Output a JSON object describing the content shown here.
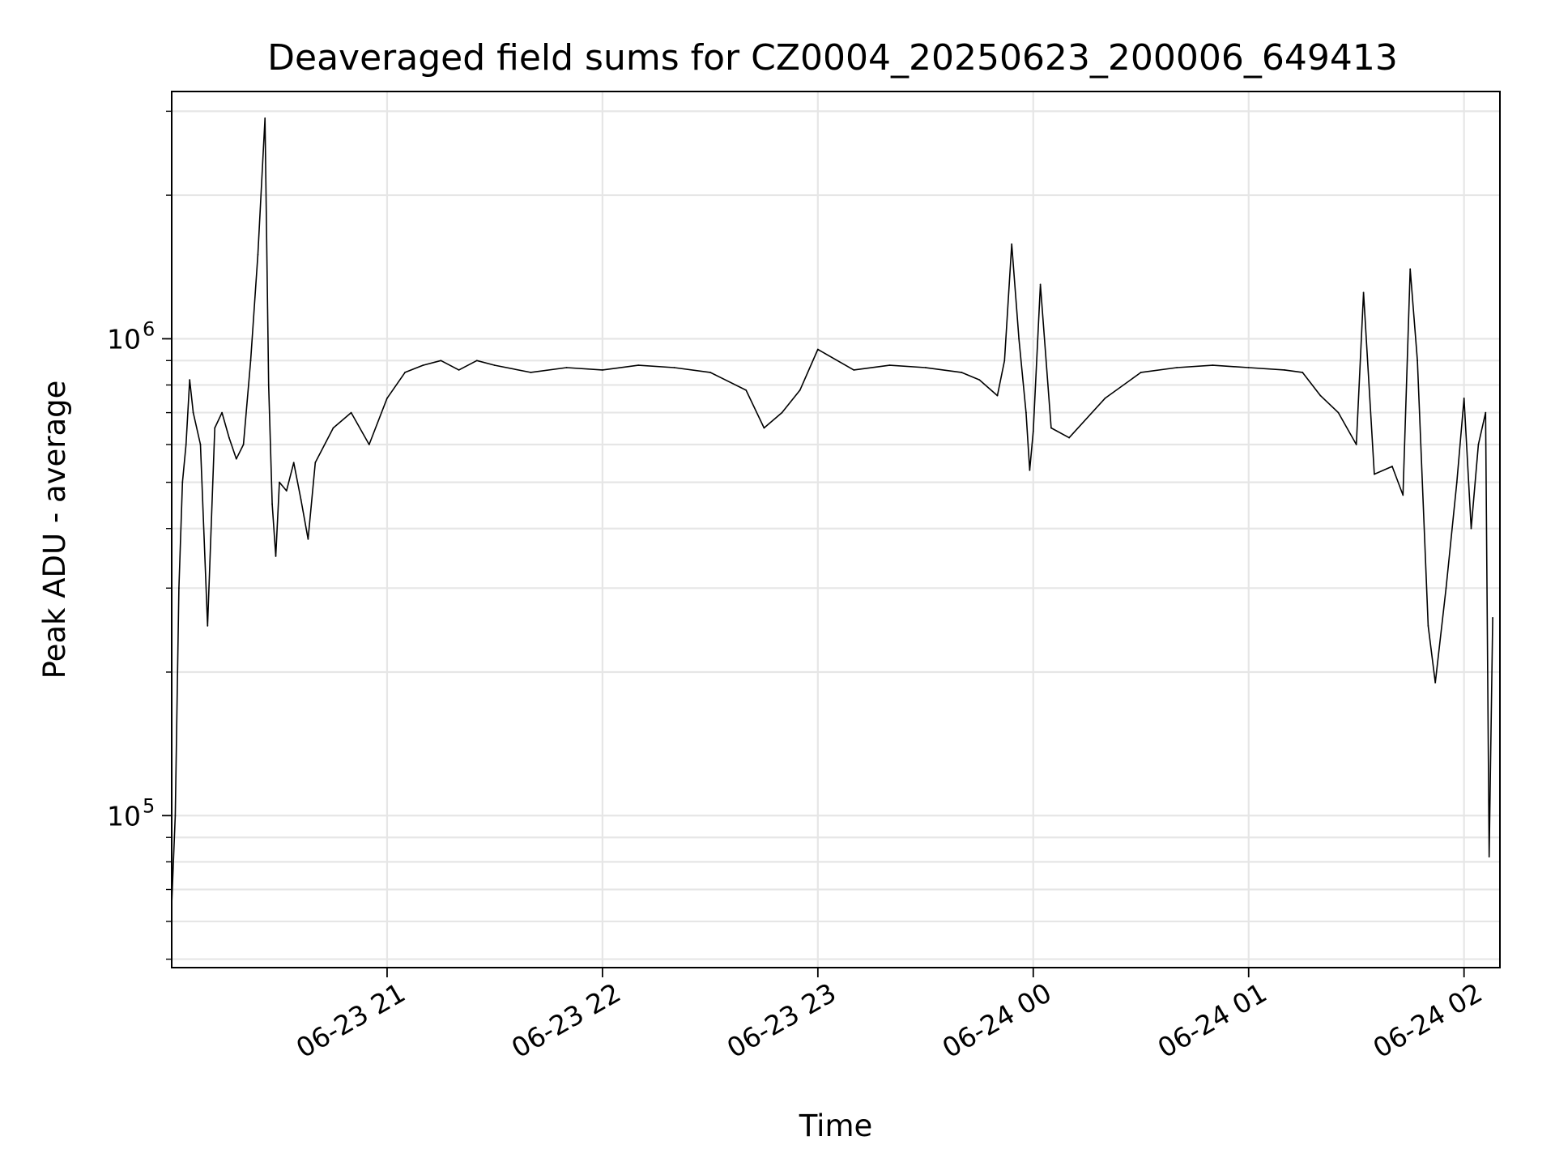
{
  "chart_data": {
    "type": "line",
    "title": "Deaveraged field sums for CZ0004_20250623_200006_649413",
    "xlabel": "Time",
    "ylabel": "Peak ADU - average",
    "yscale": "log",
    "xlim": [
      "2025-06-23 20:00",
      "2025-06-24 02:10"
    ],
    "ylim": [
      48000,
      3300000
    ],
    "grid": true,
    "line_color": "#000000",
    "x_ticks": [
      {
        "t": "2025-06-23 21:00",
        "label": "06-23 21"
      },
      {
        "t": "2025-06-23 22:00",
        "label": "06-23 22"
      },
      {
        "t": "2025-06-23 23:00",
        "label": "06-23 23"
      },
      {
        "t": "2025-06-24 00:00",
        "label": "06-24 00"
      },
      {
        "t": "2025-06-24 01:00",
        "label": "06-24 01"
      },
      {
        "t": "2025-06-24 02:00",
        "label": "06-24 02"
      }
    ],
    "y_ticks": [
      {
        "value": 100000,
        "base": "10",
        "exp": "5"
      },
      {
        "value": 1000000,
        "base": "10",
        "exp": "6"
      }
    ],
    "x": [
      "2025-06-23 20:00",
      "2025-06-23 20:01",
      "2025-06-23 20:02",
      "2025-06-23 20:03",
      "2025-06-23 20:04",
      "2025-06-23 20:05",
      "2025-06-23 20:06",
      "2025-06-23 20:08",
      "2025-06-23 20:10",
      "2025-06-23 20:12",
      "2025-06-23 20:14",
      "2025-06-23 20:16",
      "2025-06-23 20:18",
      "2025-06-23 20:20",
      "2025-06-23 20:22",
      "2025-06-23 20:24",
      "2025-06-23 20:26",
      "2025-06-23 20:27",
      "2025-06-23 20:28",
      "2025-06-23 20:29",
      "2025-06-23 20:30",
      "2025-06-23 20:32",
      "2025-06-23 20:34",
      "2025-06-23 20:36",
      "2025-06-23 20:38",
      "2025-06-23 20:40",
      "2025-06-23 20:45",
      "2025-06-23 20:50",
      "2025-06-23 20:55",
      "2025-06-23 21:00",
      "2025-06-23 21:05",
      "2025-06-23 21:10",
      "2025-06-23 21:15",
      "2025-06-23 21:20",
      "2025-06-23 21:25",
      "2025-06-23 21:30",
      "2025-06-23 21:40",
      "2025-06-23 21:50",
      "2025-06-23 22:00",
      "2025-06-23 22:10",
      "2025-06-23 22:20",
      "2025-06-23 22:30",
      "2025-06-23 22:40",
      "2025-06-23 22:45",
      "2025-06-23 22:50",
      "2025-06-23 22:55",
      "2025-06-23 23:00",
      "2025-06-23 23:10",
      "2025-06-23 23:20",
      "2025-06-23 23:30",
      "2025-06-23 23:40",
      "2025-06-23 23:45",
      "2025-06-23 23:50",
      "2025-06-23 23:52",
      "2025-06-23 23:54",
      "2025-06-23 23:56",
      "2025-06-23 23:58",
      "2025-06-23 23:59",
      "2025-06-24 00:00",
      "2025-06-24 00:02",
      "2025-06-24 00:05",
      "2025-06-24 00:10",
      "2025-06-24 00:20",
      "2025-06-24 00:30",
      "2025-06-24 00:40",
      "2025-06-24 00:50",
      "2025-06-24 01:00",
      "2025-06-24 01:10",
      "2025-06-24 01:15",
      "2025-06-24 01:20",
      "2025-06-24 01:25",
      "2025-06-24 01:30",
      "2025-06-24 01:32",
      "2025-06-24 01:35",
      "2025-06-24 01:40",
      "2025-06-24 01:43",
      "2025-06-24 01:45",
      "2025-06-24 01:47",
      "2025-06-24 01:50",
      "2025-06-24 01:52",
      "2025-06-24 01:55",
      "2025-06-24 01:58",
      "2025-06-24 02:00",
      "2025-06-24 02:02",
      "2025-06-24 02:04",
      "2025-06-24 02:06",
      "2025-06-24 02:07",
      "2025-06-24 02:08"
    ],
    "y": [
      65000,
      100000,
      300000,
      500000,
      600000,
      820000,
      700000,
      600000,
      250000,
      650000,
      700000,
      620000,
      560000,
      600000,
      900000,
      1500000,
      2900000,
      800000,
      450000,
      350000,
      500000,
      480000,
      550000,
      460000,
      380000,
      550000,
      650000,
      700000,
      600000,
      750000,
      850000,
      880000,
      900000,
      860000,
      900000,
      880000,
      850000,
      870000,
      860000,
      880000,
      870000,
      850000,
      780000,
      650000,
      700000,
      780000,
      950000,
      860000,
      880000,
      870000,
      850000,
      820000,
      760000,
      900000,
      1580000,
      1000000,
      700000,
      530000,
      640000,
      1300000,
      650000,
      620000,
      750000,
      850000,
      870000,
      880000,
      870000,
      860000,
      850000,
      760000,
      700000,
      600000,
      1250000,
      520000,
      540000,
      470000,
      1400000,
      900000,
      250000,
      190000,
      300000,
      500000,
      750000,
      400000,
      600000,
      700000,
      82000,
      260000
    ]
  }
}
